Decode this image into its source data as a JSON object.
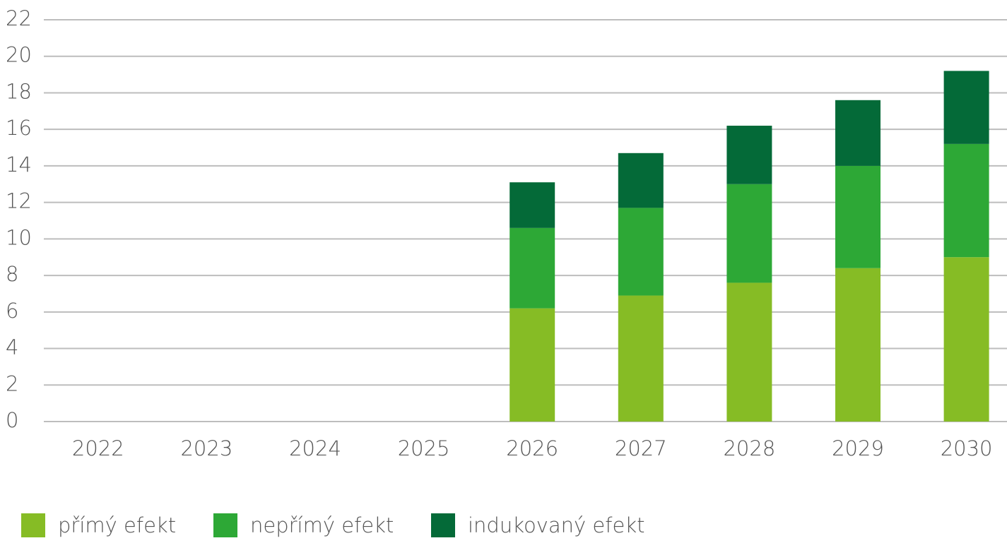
{
  "chart_data": {
    "type": "stacked_bar",
    "categories": [
      "2022",
      "2023",
      "2024",
      "2025",
      "2026",
      "2027",
      "2028",
      "2029",
      "2030"
    ],
    "series": [
      {
        "name": "přímý efekt",
        "color": "#86bc25",
        "values": [
          null,
          null,
          null,
          null,
          6.2,
          6.9,
          7.6,
          8.4,
          9.0
        ]
      },
      {
        "name": "nepřímý efekt",
        "color": "#2da836",
        "values": [
          null,
          null,
          null,
          null,
          4.4,
          4.8,
          5.4,
          5.6,
          6.2
        ]
      },
      {
        "name": "indukovaný efekt",
        "color": "#046a38",
        "values": [
          null,
          null,
          null,
          null,
          2.5,
          3.0,
          3.2,
          3.6,
          4.0
        ]
      }
    ],
    "ylim": [
      0,
      22
    ],
    "yticks": [
      0,
      2,
      4,
      6,
      8,
      10,
      12,
      14,
      16,
      18,
      20,
      22
    ],
    "grid": true
  }
}
